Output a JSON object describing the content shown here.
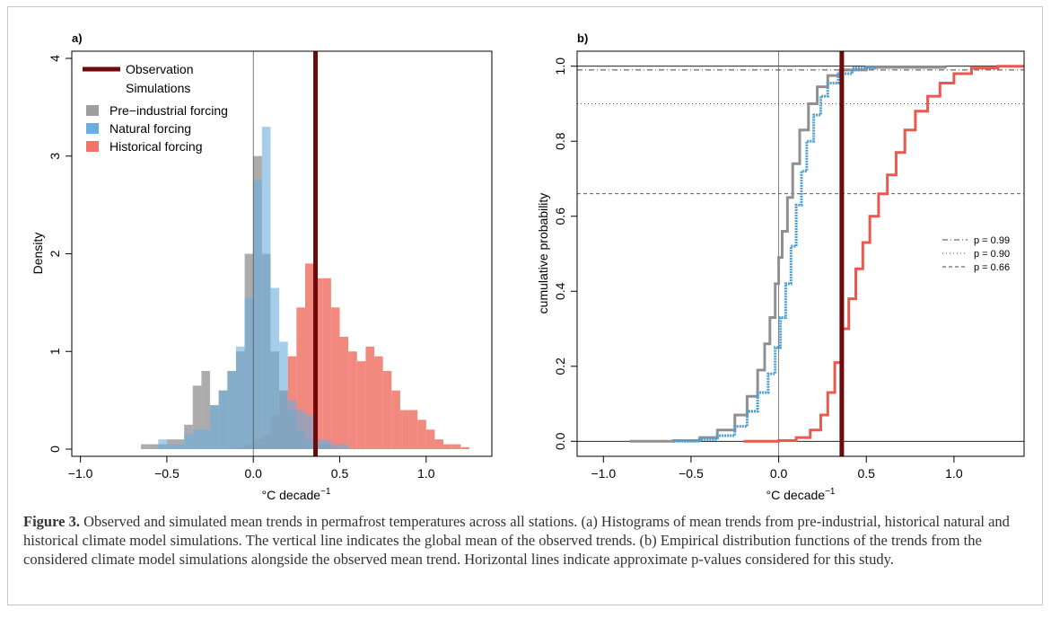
{
  "figure": {
    "caption_label": "Figure 3.",
    "caption_text": " Observed and simulated mean trends in permafrost temperatures across all stations. (a) Histograms of mean trends from pre-industrial, historical natural and historical climate model simulations. The vertical line indicates the global mean of the observed trends. (b) Empirical distribution functions of the trends from the considered climate model simulations alongside the observed mean trend. Horizontal lines indicate approximate p-values considered for this study."
  },
  "colors": {
    "observation": "#6e0a0a",
    "preindustrial": "#9e9e9e",
    "natural": "#6aaede",
    "historical": "#f07468",
    "overlap": "#4f7ca2",
    "overlap_hist_nat": "#c45454",
    "pi_line": "#909090",
    "nat_line": "#4a9fd8",
    "hist_line": "#e85a50"
  },
  "chart_data": [
    {
      "type": "bar",
      "panel_label": "a)",
      "xlabel": "°C decade−1",
      "ylabel": "Density",
      "xlim": [
        -1.05,
        1.38
      ],
      "ylim": [
        0,
        4
      ],
      "xticks": [
        "−1.0",
        "−0.5",
        "0.0",
        "0.5",
        "1.0"
      ],
      "xtick_values": [
        -1.0,
        -0.5,
        0.0,
        0.5,
        1.0
      ],
      "yticks": [
        "0",
        "1",
        "2",
        "3",
        "4"
      ],
      "ytick_values": [
        0,
        1,
        2,
        3,
        4
      ],
      "bin_width": 0.05,
      "observation": 0.36,
      "legend": {
        "observation": "Observation",
        "simulations_header": "Simulations",
        "entries": [
          "Pre−industrial forcing",
          "Natural forcing",
          "Historical forcing"
        ],
        "position": "top-left"
      },
      "series": [
        {
          "name": "Pre−industrial forcing",
          "bins": [
            [
              -0.65,
              0.05
            ],
            [
              -0.6,
              0.05
            ],
            [
              -0.55,
              0.05
            ],
            [
              -0.5,
              0.1
            ],
            [
              -0.45,
              0.1
            ],
            [
              -0.4,
              0.25
            ],
            [
              -0.35,
              0.65
            ],
            [
              -0.3,
              0.8
            ],
            [
              -0.25,
              0.45
            ],
            [
              -0.2,
              0.6
            ],
            [
              -0.15,
              0.8
            ],
            [
              -0.1,
              1.0
            ],
            [
              -0.05,
              2.0
            ],
            [
              0.0,
              3.0
            ],
            [
              0.05,
              2.0
            ],
            [
              0.1,
              1.0
            ],
            [
              0.15,
              0.6
            ],
            [
              0.2,
              0.4
            ],
            [
              0.25,
              0.2
            ],
            [
              0.3,
              0.1
            ],
            [
              0.35,
              0.05
            ],
            [
              0.4,
              0.05
            ]
          ]
        },
        {
          "name": "Natural forcing",
          "bins": [
            [
              -0.55,
              0.1
            ],
            [
              -0.5,
              0.05
            ],
            [
              -0.45,
              0.05
            ],
            [
              -0.4,
              0.15
            ],
            [
              -0.35,
              0.2
            ],
            [
              -0.3,
              0.2
            ],
            [
              -0.25,
              0.45
            ],
            [
              -0.2,
              0.6
            ],
            [
              -0.15,
              0.8
            ],
            [
              -0.1,
              1.05
            ],
            [
              -0.05,
              1.55
            ],
            [
              0.0,
              2.75
            ],
            [
              0.05,
              3.3
            ],
            [
              0.1,
              1.65
            ],
            [
              0.15,
              1.1
            ],
            [
              0.2,
              0.5
            ],
            [
              0.25,
              0.4
            ],
            [
              0.3,
              0.35
            ],
            [
              0.35,
              0.1
            ],
            [
              0.4,
              0.1
            ],
            [
              0.45,
              0.05
            ],
            [
              0.5,
              0.05
            ]
          ]
        },
        {
          "name": "Historical forcing",
          "bins": [
            [
              -0.1,
              0.02
            ],
            [
              -0.05,
              0.05
            ],
            [
              0.0,
              0.1
            ],
            [
              0.05,
              0.15
            ],
            [
              0.1,
              0.35
            ],
            [
              0.15,
              0.6
            ],
            [
              0.2,
              0.95
            ],
            [
              0.25,
              1.45
            ],
            [
              0.3,
              1.9
            ],
            [
              0.35,
              1.75
            ],
            [
              0.4,
              1.75
            ],
            [
              0.45,
              1.45
            ],
            [
              0.5,
              1.15
            ],
            [
              0.55,
              1.0
            ],
            [
              0.6,
              0.9
            ],
            [
              0.65,
              1.05
            ],
            [
              0.7,
              0.95
            ],
            [
              0.75,
              0.8
            ],
            [
              0.8,
              0.6
            ],
            [
              0.85,
              0.4
            ],
            [
              0.9,
              0.4
            ],
            [
              0.95,
              0.3
            ],
            [
              1.0,
              0.2
            ],
            [
              1.05,
              0.1
            ],
            [
              1.1,
              0.05
            ],
            [
              1.15,
              0.05
            ],
            [
              1.2,
              0.02
            ]
          ]
        }
      ]
    },
    {
      "type": "line",
      "panel_label": "b)",
      "xlabel": "°C decade−1",
      "ylabel": "cumulative probability",
      "xlim": [
        -1.15,
        1.4
      ],
      "ylim": [
        -0.04,
        1.04
      ],
      "xticks": [
        "−1.0",
        "−0.5",
        "0.0",
        "0.5",
        "1.0"
      ],
      "xtick_values": [
        -1.0,
        -0.5,
        0.0,
        0.5,
        1.0
      ],
      "yticks": [
        "0.0",
        "0.2",
        "0.4",
        "0.6",
        "0.8",
        "1.0"
      ],
      "ytick_values": [
        0.0,
        0.2,
        0.4,
        0.6,
        0.8,
        1.0
      ],
      "observation": 0.36,
      "reference_lines": [
        {
          "p": 0.99,
          "label": "p = 0.99",
          "style": "dashdot"
        },
        {
          "p": 0.9,
          "label": "p = 0.90",
          "style": "dotted"
        },
        {
          "p": 0.66,
          "label": "p = 0.66",
          "style": "dashed"
        }
      ],
      "legend_position": "right",
      "series": [
        {
          "key": "preindustrial",
          "points": [
            [
              -0.85,
              0.0
            ],
            [
              -0.6,
              0.002
            ],
            [
              -0.45,
              0.01
            ],
            [
              -0.35,
              0.03
            ],
            [
              -0.25,
              0.07
            ],
            [
              -0.18,
              0.12
            ],
            [
              -0.12,
              0.19
            ],
            [
              -0.08,
              0.26
            ],
            [
              -0.05,
              0.33
            ],
            [
              -0.02,
              0.42
            ],
            [
              0.0,
              0.49
            ],
            [
              0.02,
              0.56
            ],
            [
              0.05,
              0.65
            ],
            [
              0.08,
              0.74
            ],
            [
              0.12,
              0.83
            ],
            [
              0.17,
              0.9
            ],
            [
              0.22,
              0.945
            ],
            [
              0.28,
              0.975
            ],
            [
              0.35,
              0.99
            ],
            [
              0.5,
              0.997
            ],
            [
              0.95,
              1.0
            ]
          ]
        },
        {
          "key": "natural",
          "points": [
            [
              -0.6,
              0.0
            ],
            [
              -0.45,
              0.005
            ],
            [
              -0.35,
              0.015
            ],
            [
              -0.25,
              0.04
            ],
            [
              -0.18,
              0.08
            ],
            [
              -0.12,
              0.13
            ],
            [
              -0.06,
              0.18
            ],
            [
              -0.02,
              0.25
            ],
            [
              0.01,
              0.33
            ],
            [
              0.04,
              0.42
            ],
            [
              0.07,
              0.52
            ],
            [
              0.1,
              0.63
            ],
            [
              0.13,
              0.72
            ],
            [
              0.16,
              0.8
            ],
            [
              0.2,
              0.87
            ],
            [
              0.24,
              0.92
            ],
            [
              0.28,
              0.955
            ],
            [
              0.34,
              0.98
            ],
            [
              0.42,
              0.995
            ],
            [
              0.55,
              1.0
            ]
          ]
        },
        {
          "key": "historical",
          "points": [
            [
              -0.2,
              0.0
            ],
            [
              0.0,
              0.002
            ],
            [
              0.1,
              0.01
            ],
            [
              0.18,
              0.03
            ],
            [
              0.24,
              0.07
            ],
            [
              0.28,
              0.13
            ],
            [
              0.32,
              0.21
            ],
            [
              0.36,
              0.3
            ],
            [
              0.4,
              0.38
            ],
            [
              0.44,
              0.46
            ],
            [
              0.48,
              0.53
            ],
            [
              0.52,
              0.6
            ],
            [
              0.57,
              0.66
            ],
            [
              0.62,
              0.71
            ],
            [
              0.67,
              0.77
            ],
            [
              0.72,
              0.83
            ],
            [
              0.78,
              0.88
            ],
            [
              0.85,
              0.92
            ],
            [
              0.92,
              0.955
            ],
            [
              1.0,
              0.98
            ],
            [
              1.1,
              0.995
            ],
            [
              1.25,
              1.0
            ],
            [
              1.4,
              1.0
            ]
          ]
        }
      ]
    }
  ]
}
